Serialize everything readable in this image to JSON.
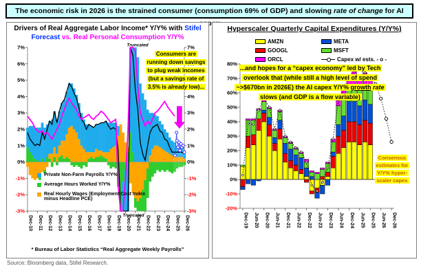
{
  "banner": {
    "segments": [
      {
        "text": "The economic risk in 2026 is the strained consumer (consumption 69% of GDP) and slowing "
      },
      {
        "text": "rate of change",
        "italic": true
      },
      {
        "text": " for AI capex"
      }
    ]
  },
  "source": "Source: Bloomberg data, Stifel Research.",
  "left_chart": {
    "title_segments": [
      {
        "text": "Drivers of Real Aggregate Labor Income* Y/Y% with ",
        "color": "#000000"
      },
      {
        "text": "Stifel",
        "color": "#0033FF"
      },
      {
        "br": true
      },
      {
        "text": "Forecast",
        "color": "#0033FF"
      },
      {
        "text": " ",
        "color": "#000000"
      },
      {
        "text": "vs. Real Personal Consumption Y/Y%",
        "color": "#FF00FF"
      }
    ],
    "annotation_segments": [
      {
        "text": "Consumers are running down savings to plug weak incomes (but a savings rate of 3.5% is "
      },
      {
        "text": "already",
        "italic": true
      },
      {
        "text": " low)..."
      }
    ],
    "truncated_label": "Truncated",
    "legend": [
      {
        "label": "Private Non-Farm Payrolls Y/Y%",
        "color": "#1FACEC"
      },
      {
        "label": "Average Hours Worked Y/Y%",
        "color": "#2ECC2E"
      },
      {
        "label": "Real Hourly Wages (Employment Cost Index minus Headline PCE)",
        "color": "#FFA500"
      }
    ],
    "footnote": "* Bureau of Labor Statistics “Real Aggregate Weekly Payrolls”"
  },
  "right_chart": {
    "title": "Hyperscaler Quarterly Capital Expenditures (Y/Y%)",
    "annotation_segments": [
      {
        "text": "...and hopes for a “capex economy” led by Tech overlook that (while still a high level of spend ~>$670bn in 2026E) the AI capex Y/Y% "
      },
      {
        "text": "growth",
        "underline": true
      },
      {
        "text": " "
      },
      {
        "text": "rate",
        "italic": true
      },
      {
        "text": " slows (and GDP is a flow variable)"
      }
    ],
    "consensus_annotation": "Consensus estimates for Y/Y% hyper- scaler capex",
    "legend_col1": [
      {
        "label": "AMZN",
        "color": "#FFFF00"
      },
      {
        "label": "GOOGL",
        "color": "#EE0000"
      },
      {
        "label": "ORCL",
        "color": "#FF00FF"
      }
    ],
    "legend_col2": [
      {
        "label": "META",
        "color": "#0050D8"
      },
      {
        "label": "MSFT",
        "color": "#66E02E"
      },
      {
        "label": "Capex w/ ests. - o -",
        "line": true
      }
    ]
  },
  "chart_data": [
    {
      "type": "area",
      "title": "Drivers of Real Aggregate Labor Income* Y/Y% with Stifel Forecast vs. Real Personal Consumption Y/Y%",
      "x_unit": "quarterly",
      "x_tick_labels": [
        "Dec-10",
        "Dec-11",
        "Dec-12",
        "Dec-13",
        "Dec-14",
        "Dec-15",
        "Dec-16",
        "Dec-17",
        "Dec-18",
        "Dec-19",
        "Dec-20",
        "Dec-21",
        "Dec-22",
        "Dec-23",
        "Dec-24",
        "Dec-25",
        "Dec-26"
      ],
      "ylim": [
        -3,
        7
      ],
      "y_tick_step": 1,
      "truncated_at": [
        -3,
        7
      ],
      "hatch_start_index": 60,
      "down_arrow": {
        "x_index": 62,
        "y_from": 3.4,
        "y_to": 2.05,
        "color": "#FF00FF"
      },
      "stack_series": [
        {
          "name": "Private Non-Farm Payrolls Y/Y%",
          "color": "#1FACEC",
          "values": [
            1.2,
            1.6,
            1.8,
            1.9,
            2.0,
            2.1,
            2.2,
            2.1,
            2.0,
            2.0,
            2.1,
            2.2,
            2.1,
            2.1,
            2.3,
            2.5,
            2.6,
            2.7,
            2.6,
            2.5,
            2.3,
            2.2,
            2.0,
            1.8,
            1.7,
            1.7,
            1.6,
            1.5,
            1.5,
            1.6,
            1.7,
            1.8,
            1.9,
            1.8,
            1.6,
            1.5,
            1.4,
            0.6,
            -8.5,
            -7.5,
            -6.2,
            -5.5,
            8.8,
            7.8,
            7.2,
            6.4,
            4.8,
            4.2,
            3.8,
            3.2,
            2.6,
            2.2,
            1.9,
            1.8,
            1.6,
            1.5,
            1.3,
            1.2,
            1.0,
            0.9,
            0.8,
            0.7,
            0.6,
            0.6,
            0.5
          ]
        },
        {
          "name": "Average Hours Worked Y/Y%",
          "color": "#2ECC2E",
          "values": [
            0.9,
            0.6,
            0.4,
            0.2,
            0.1,
            -0.3,
            0.2,
            -0.2,
            0.3,
            0.2,
            -0.3,
            0.3,
            -0.2,
            0.3,
            0.4,
            0.2,
            0.3,
            0.2,
            -0.2,
            -0.3,
            -0.2,
            -0.3,
            -0.4,
            -0.2,
            -0.3,
            0.2,
            0.3,
            0.2,
            0.3,
            0.3,
            0.4,
            0.3,
            0.2,
            -0.2,
            -0.4,
            -0.3,
            -0.4,
            -1.5,
            -3.5,
            -1.2,
            -0.5,
            0.6,
            1.8,
            0.6,
            -0.6,
            -0.8,
            -1.4,
            -2.0,
            -2.6,
            -1.8,
            -1.2,
            -0.9,
            -0.7,
            -0.5,
            -0.6,
            -0.5,
            -0.6,
            -0.5,
            -0.6,
            -0.7,
            -0.6,
            -0.4,
            -0.3,
            -0.3,
            -0.2
          ]
        },
        {
          "name": "Real Hourly Wages (Employment Cost Index minus Headline PCE)",
          "color": "#FFA500",
          "values": [
            -0.3,
            -0.8,
            -1.0,
            -1.1,
            -1.0,
            -0.8,
            -0.6,
            -0.5,
            -0.3,
            0.3,
            0.5,
            0.6,
            0.5,
            0.7,
            0.9,
            1.1,
            1.4,
            1.9,
            2.2,
            2.0,
            1.8,
            1.4,
            1.0,
            0.8,
            0.6,
            0.4,
            0.3,
            0.4,
            0.5,
            0.4,
            0.3,
            0.3,
            0.4,
            0.6,
            0.8,
            0.9,
            1.0,
            1.6,
            2.3,
            1.8,
            1.2,
            0.3,
            -1.3,
            -1.9,
            -2.2,
            -2.4,
            -2.2,
            -1.7,
            -1.1,
            -0.4,
            0.4,
            0.8,
            1.0,
            1.0,
            0.9,
            0.8,
            0.7,
            0.6,
            0.5,
            0.4,
            0.4,
            0.3,
            0.3,
            0.3,
            0.2
          ]
        }
      ],
      "line_series": [
        {
          "name": "Real Aggregate Labor Income Y/Y% (sum of components)",
          "color": "#000000",
          "derived": "sum_of_stack"
        },
        {
          "name": "Real Personal Consumption Y/Y%",
          "color": "#FF00FF",
          "values": [
            2.8,
            2.6,
            2.4,
            2.1,
            1.9,
            1.8,
            1.9,
            1.7,
            1.8,
            1.6,
            1.4,
            1.7,
            2.0,
            2.3,
            2.8,
            3.2,
            3.6,
            3.9,
            3.6,
            3.4,
            3.2,
            2.8,
            2.6,
            2.7,
            2.8,
            2.9,
            2.7,
            2.6,
            2.8,
            2.9,
            3.1,
            3.0,
            2.8,
            2.6,
            2.4,
            2.5,
            2.6,
            -1.5,
            -9.5,
            -3.5,
            -1.0,
            2.0,
            9.8,
            7.2,
            6.8,
            4.6,
            3.0,
            2.6,
            2.2,
            2.5,
            2.3,
            2.6,
            3.0,
            3.1,
            3.3,
            3.5,
            3.7,
            3.4,
            3.2,
            3.0,
            2.8,
            null,
            null,
            null,
            null
          ]
        }
      ],
      "forecast_points": {
        "name": "Stifel Forecast",
        "color": "#4040FF",
        "x": [
          60.2,
          60.8,
          61.0,
          61.4,
          61.8,
          62.2,
          62.6,
          63.0,
          63.5,
          64.0
        ],
        "y": [
          0.4,
          1.8,
          1.3,
          0.9,
          1.2,
          0.7,
          1.1,
          0.9,
          1.0,
          0.6
        ]
      }
    },
    {
      "type": "stacked-bar",
      "title": "Hyperscaler Quarterly Capital Expenditures (Y/Y%)",
      "categories": [
        "Dec-19",
        "Mar-20",
        "Jun-20",
        "Sep-20",
        "Dec-20",
        "Mar-21",
        "Jun-21",
        "Sep-21",
        "Dec-21",
        "Mar-22",
        "Jun-22",
        "Sep-22",
        "Dec-22",
        "Mar-23",
        "Jun-23",
        "Sep-23",
        "Dec-23",
        "Mar-24",
        "Jun-24",
        "Sep-24",
        "Dec-24",
        "Mar-25",
        "Jun-25",
        "Sep-25",
        "Dec-25",
        "Mar-26",
        "Jun-26",
        "Sep-26",
        "Dec-26"
      ],
      "x_label_every": 2,
      "ylim": [
        -20,
        80
      ],
      "y_tick_step": 10,
      "series": [
        {
          "name": "AMZN",
          "color": "#FFFF00",
          "values": [
            9,
            22,
            24,
            34,
            40,
            30,
            20,
            28,
            12,
            8,
            6,
            4,
            2,
            -8,
            -6,
            -4,
            2,
            8,
            18,
            22,
            26,
            26,
            24,
            26,
            24,
            null,
            null,
            null,
            null
          ]
        },
        {
          "name": "GOOGL",
          "color": "#EE0000",
          "values": [
            -5,
            8,
            7,
            8,
            6,
            8,
            5,
            7,
            6,
            5,
            4,
            3,
            -2,
            -2,
            -3,
            2,
            3,
            8,
            12,
            12,
            14,
            14,
            14,
            15,
            15,
            null,
            null,
            null,
            null
          ]
        },
        {
          "name": "META",
          "color": "#0050D8",
          "values": [
            -2,
            -3,
            -4,
            -1,
            2,
            5,
            4,
            6,
            7,
            8,
            7,
            8,
            6,
            2,
            -4,
            -6,
            -4,
            3,
            8,
            10,
            14,
            14,
            13,
            14,
            13,
            null,
            null,
            null,
            null
          ]
        },
        {
          "name": "MSFT",
          "color": "#66E02E",
          "values": [
            1,
            11,
            10,
            6,
            6,
            6,
            5,
            6,
            4,
            4,
            4,
            3,
            4,
            3,
            4,
            5,
            6,
            7,
            13,
            14,
            12,
            12,
            11,
            11,
            11,
            null,
            null,
            null,
            null
          ]
        },
        {
          "name": "ORCL",
          "color": "#FF00FF",
          "values": [
            0,
            1,
            1,
            1,
            2,
            1,
            1,
            1,
            1,
            1,
            1,
            1,
            2,
            1,
            1,
            1,
            1,
            2,
            4,
            4,
            6,
            9,
            8,
            8,
            8,
            null,
            null,
            null,
            null
          ]
        }
      ],
      "total_line": {
        "name": "Capex w/ ests.",
        "color": "#000000",
        "estimates_from_index": 24,
        "values": [
          3,
          39,
          38,
          48,
          56,
          50,
          35,
          48,
          30,
          26,
          22,
          19,
          12,
          -4,
          -8,
          -2,
          8,
          28,
          55,
          62,
          72,
          75,
          70,
          74,
          71,
          66,
          56,
          42,
          26
        ]
      }
    }
  ]
}
